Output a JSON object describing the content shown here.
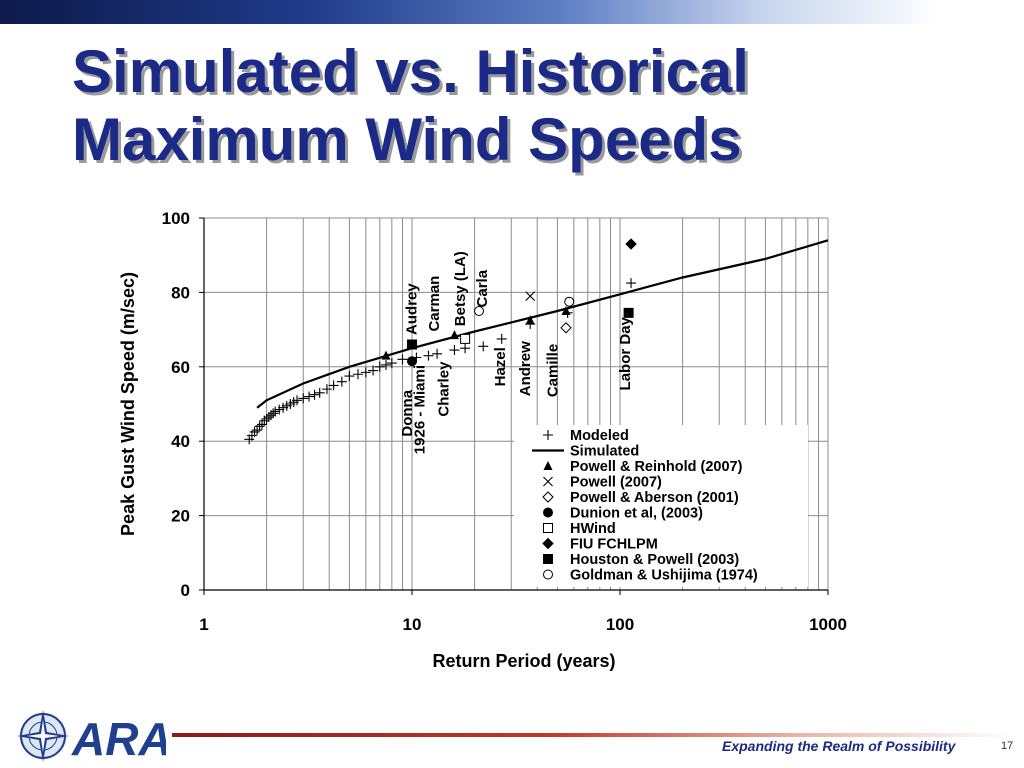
{
  "slide": {
    "title_line1": "Simulated vs. Historical",
    "title_line2": "Maximum Wind Speeds",
    "tagline": "Expanding the Realm of Possibility",
    "page_number": "17",
    "logo_text": "ARA",
    "colors": {
      "title": "#1b2a86",
      "tagline": "#1b2a86",
      "footer_line": "#c0392b"
    }
  },
  "chart_data": {
    "type": "scatter",
    "xlabel": "Return Period (years)",
    "ylabel": "Peak Gust Wind Speed (m/sec)",
    "xscale": "log",
    "xlim": [
      1,
      1000
    ],
    "ylim": [
      0,
      100
    ],
    "xticks": [
      "1",
      "10",
      "100",
      "1000"
    ],
    "yticks": [
      "0",
      "20",
      "40",
      "60",
      "80",
      "100"
    ],
    "grid": true,
    "legend_position": "bottom-right",
    "legend": [
      {
        "label": "Modeled",
        "marker": "plus"
      },
      {
        "label": "Simulated",
        "marker": "line"
      },
      {
        "label": "Powell & Reinhold (2007)",
        "marker": "triangle"
      },
      {
        "label": "Powell (2007)",
        "marker": "x"
      },
      {
        "label": "Powell & Aberson (2001)",
        "marker": "diamond-open"
      },
      {
        "label": "Dunion et al, (2003)",
        "marker": "circle-filled"
      },
      {
        "label": "HWind",
        "marker": "square-open"
      },
      {
        "label": "FIU FCHLPM",
        "marker": "diamond-filled"
      },
      {
        "label": "Houston & Powell (2003)",
        "marker": "square-filled"
      },
      {
        "label": "Goldman & Ushijima (1974)",
        "marker": "circle-open"
      }
    ],
    "series": [
      {
        "name": "Simulated",
        "marker": "line",
        "x": [
          1.8,
          2,
          3,
          5,
          10,
          20,
          50,
          100,
          200,
          500,
          1000
        ],
        "y": [
          49,
          51,
          55.5,
          60,
          65,
          69.5,
          75,
          79.5,
          84,
          89,
          94
        ]
      },
      {
        "name": "Modeled",
        "marker": "plus",
        "x": [
          1.65,
          1.7,
          1.75,
          1.8,
          1.85,
          1.9,
          1.95,
          2.0,
          2.05,
          2.1,
          2.15,
          2.2,
          2.3,
          2.4,
          2.5,
          2.6,
          2.7,
          2.8,
          3.0,
          3.2,
          3.4,
          3.6,
          3.9,
          4.2,
          4.6,
          5.0,
          5.5,
          6.0,
          6.5,
          7.0,
          7.5,
          8.0,
          9.0,
          10.5,
          12.0,
          13.2,
          16.0,
          18.0,
          22.0,
          27.0,
          37.0,
          56.0,
          113.0
        ],
        "y": [
          40.5,
          41.5,
          42.5,
          43,
          44,
          44.5,
          45.5,
          46,
          46.5,
          47,
          47.5,
          48,
          48.5,
          49,
          49.5,
          50,
          50.5,
          51,
          51.5,
          52,
          52.5,
          53,
          54,
          55,
          56,
          57.5,
          58,
          58.5,
          59,
          60,
          60.5,
          61,
          62,
          62.5,
          63,
          63.5,
          64.5,
          65,
          65.5,
          67.5,
          71.5,
          74.5,
          82.5
        ]
      },
      {
        "name": "Powell & Reinhold (2007)",
        "marker": "triangle",
        "x": [
          7.5,
          16,
          37,
          55
        ],
        "y": [
          63,
          68.5,
          72.5,
          75
        ]
      },
      {
        "name": "Powell (2007)",
        "marker": "x",
        "x": [
          37
        ],
        "y": [
          79
        ]
      },
      {
        "name": "Powell & Aberson (2001)",
        "marker": "diamond-open",
        "x": [
          55
        ],
        "y": [
          70.5
        ]
      },
      {
        "name": "Dunion et al, (2003)",
        "marker": "circle-filled",
        "x": [
          10
        ],
        "y": [
          61.5
        ]
      },
      {
        "name": "HWind",
        "marker": "square-open",
        "x": [
          18
        ],
        "y": [
          67.5
        ]
      },
      {
        "name": "FIU FCHLPM",
        "marker": "diamond-filled",
        "x": [
          113
        ],
        "y": [
          93
        ]
      },
      {
        "name": "Houston & Powell (2003)",
        "marker": "square-filled",
        "x": [
          10,
          110
        ],
        "y": [
          66,
          74.5
        ]
      },
      {
        "name": "Goldman & Ushijima (1974)",
        "marker": "circle-open",
        "x": [
          21,
          57
        ],
        "y": [
          75,
          77.5
        ]
      }
    ],
    "annotations": [
      {
        "text": "Donna",
        "x": 10,
        "y": 47.5
      },
      {
        "text": "1926 - Miami",
        "x": 11.5,
        "y": 48.5
      },
      {
        "text": "Charley",
        "x": 15,
        "y": 54
      },
      {
        "text": "Audrey",
        "x": 10.5,
        "y": 75.5
      },
      {
        "text": "Carman",
        "x": 13.5,
        "y": 77
      },
      {
        "text": "Betsy (LA)",
        "x": 18,
        "y": 81
      },
      {
        "text": "Carla",
        "x": 23,
        "y": 81
      },
      {
        "text": "Hazel",
        "x": 28,
        "y": 60
      },
      {
        "text": "Andrew",
        "x": 37,
        "y": 59.5
      },
      {
        "text": "Camille",
        "x": 50,
        "y": 59
      },
      {
        "text": "Labor Day",
        "x": 112,
        "y": 63.5
      }
    ]
  }
}
